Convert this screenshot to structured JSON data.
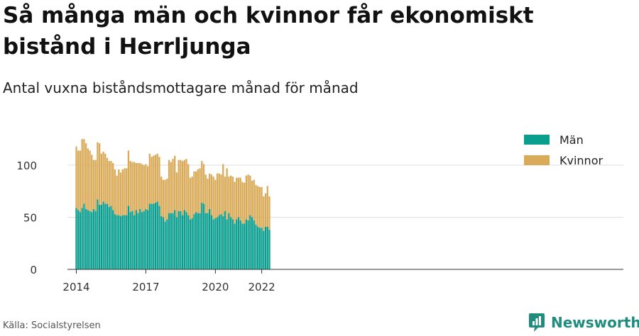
{
  "header": {
    "title": "Så många män och kvinnor får ekonomiskt bistånd i Herrljunga",
    "subtitle": "Antal vuxna biståndsmottagare månad för månad"
  },
  "footer": {
    "source": "Källa: Socialstyrelsen",
    "brand": "Newsworthy"
  },
  "colors": {
    "man": "#0a9e8f",
    "kvinnor": "#d9aa57",
    "grid": "#dddddd",
    "axis": "#333333"
  },
  "chart_data": {
    "type": "bar",
    "stacked": true,
    "x_start": "2014-01",
    "x_end": "2022-03",
    "x_ticks": [
      "2014",
      "2017",
      "2020",
      "2022"
    ],
    "ylim": [
      0,
      130
    ],
    "y_ticks": [
      0,
      50,
      100
    ],
    "legend_position": "top-right",
    "grid": true,
    "series": [
      {
        "name": "Män",
        "values": [
          59,
          57,
          55,
          59,
          63,
          58,
          57,
          56,
          55,
          58,
          56,
          67,
          62,
          62,
          65,
          63,
          63,
          60,
          61,
          57,
          53,
          52,
          52,
          51,
          52,
          52,
          52,
          61,
          55,
          56,
          52,
          57,
          54,
          58,
          55,
          56,
          58,
          57,
          63,
          63,
          63,
          64,
          65,
          61,
          51,
          50,
          46,
          48,
          54,
          54,
          54,
          57,
          50,
          56,
          56,
          52,
          57,
          55,
          52,
          48,
          49,
          53,
          55,
          54,
          54,
          64,
          63,
          54,
          54,
          58,
          52,
          48,
          49,
          50,
          52,
          53,
          51,
          56,
          48,
          54,
          50,
          48,
          44,
          48,
          50,
          47,
          44,
          44,
          48,
          47,
          52,
          50,
          47,
          43,
          41,
          40,
          40,
          37,
          41,
          41,
          38
        ]
      },
      {
        "name": "Kvinnor",
        "values": [
          59,
          57,
          59,
          66,
          62,
          63,
          59,
          58,
          55,
          47,
          49,
          55,
          59,
          49,
          48,
          48,
          44,
          44,
          43,
          45,
          43,
          38,
          44,
          42,
          44,
          45,
          45,
          53,
          49,
          47,
          51,
          45,
          48,
          44,
          46,
          44,
          43,
          42,
          48,
          45,
          46,
          46,
          46,
          47,
          38,
          36,
          40,
          39,
          51,
          49,
          52,
          52,
          43,
          49,
          49,
          52,
          48,
          51,
          49,
          40,
          40,
          41,
          39,
          42,
          43,
          40,
          38,
          37,
          33,
          34,
          39,
          41,
          37,
          42,
          40,
          38,
          50,
          33,
          49,
          35,
          40,
          41,
          40,
          40,
          38,
          41,
          40,
          39,
          42,
          44,
          38,
          35,
          39,
          38,
          39,
          39,
          39,
          33,
          32,
          39,
          32
        ]
      }
    ]
  }
}
